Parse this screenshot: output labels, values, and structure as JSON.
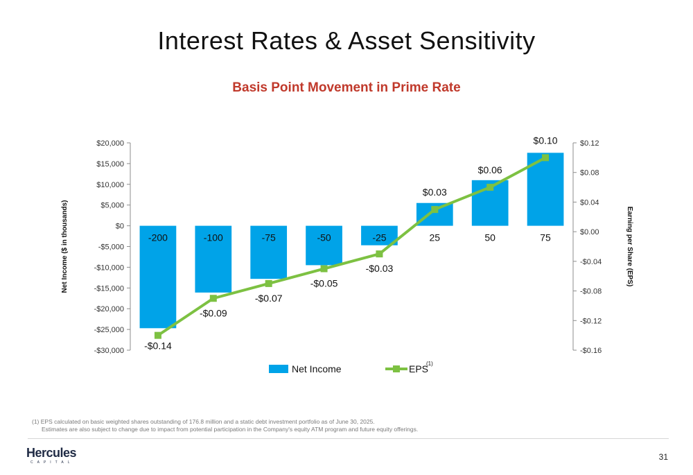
{
  "page": {
    "title": "Interest Rates & Asset Sensitivity",
    "page_number": "31"
  },
  "logo": {
    "word": "Hercules",
    "sub": "CAPITAL"
  },
  "footnote": {
    "line1": "(1) EPS calculated on basic weighted shares outstanding of 176.8 million and a static debt investment portfolio as of June 30, 2025.",
    "line2": "Estimates are also subject to change due to impact from potential participation in the Company's equity ATM program and future equity offerings."
  },
  "colors": {
    "bar": "#00a3e8",
    "line": "#7dc142",
    "title_accent": "#c0392b",
    "axis": "#8c8c8c"
  },
  "chart_data": {
    "type": "bar+line",
    "title": "Basis Point Movement in Prime Rate",
    "categories": [
      "-200",
      "-100",
      "-75",
      "-50",
      "-25",
      "25",
      "50",
      "75"
    ],
    "series": [
      {
        "name": "Net Income",
        "type": "bar",
        "axis": "left",
        "values": [
          -24700,
          -16100,
          -12800,
          -9500,
          -4700,
          5500,
          11000,
          17600
        ]
      },
      {
        "name": "EPS",
        "superscript": "(1)",
        "type": "line",
        "axis": "right",
        "values": [
          -0.14,
          -0.09,
          -0.07,
          -0.05,
          -0.03,
          0.03,
          0.06,
          0.1
        ],
        "labels": [
          "-$0.14",
          "-$0.09",
          "-$0.07",
          "-$0.05",
          "-$0.03",
          "$0.03",
          "$0.06",
          "$0.10"
        ]
      }
    ],
    "y_left": {
      "label": "Net Income ($ in thousands)",
      "ylim": [
        -30000,
        20000
      ],
      "ticks": [
        20000,
        15000,
        10000,
        5000,
        0,
        -5000,
        -10000,
        -15000,
        -20000,
        -25000,
        -30000
      ],
      "tick_labels": [
        "$20,000",
        "$15,000",
        "$10,000",
        "$5,000",
        "$0",
        "-$5,000",
        "-$10,000",
        "-$15,000",
        "-$20,000",
        "-$25,000",
        "-$30,000"
      ]
    },
    "y_right": {
      "label": "Earning per Share (EPS)",
      "ylim": [
        -0.16,
        0.12
      ],
      "ticks": [
        0.12,
        0.08,
        0.04,
        0.0,
        -0.04,
        -0.08,
        -0.12,
        -0.16
      ],
      "tick_labels": [
        "$0.12",
        "$0.08",
        "$0.04",
        "$0.00",
        "-$0.04",
        "-$0.08",
        "-$0.12",
        "-$0.16"
      ]
    },
    "legend": {
      "placement": "bottom",
      "items": [
        "Net Income",
        "EPS"
      ]
    },
    "grid": false
  }
}
